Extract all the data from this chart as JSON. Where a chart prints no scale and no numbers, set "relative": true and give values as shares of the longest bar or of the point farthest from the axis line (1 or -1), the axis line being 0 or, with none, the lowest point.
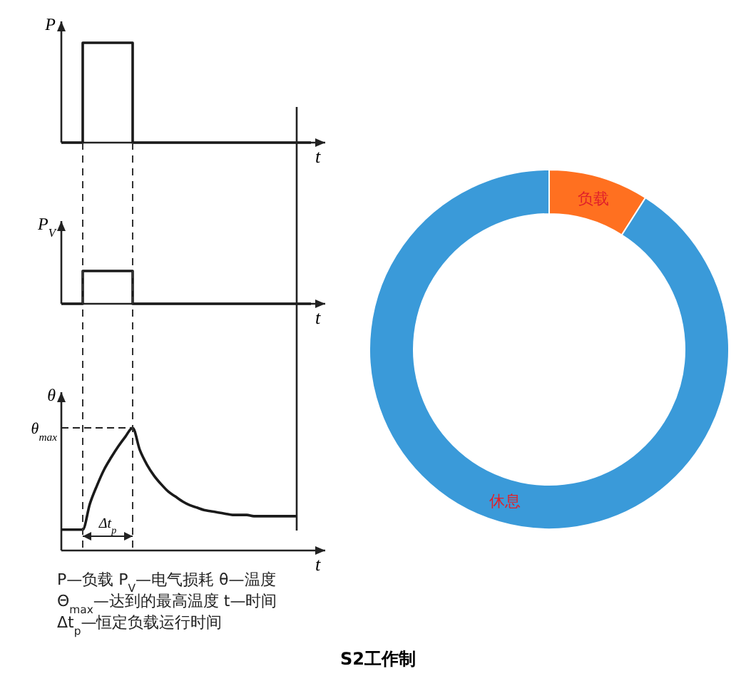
{
  "chart_data": [
    {
      "type": "step",
      "ylabel": "P",
      "xlabel": "t",
      "relative": true,
      "categories": [
        null,
        null,
        null,
        null,
        null,
        null,
        null,
        null,
        null,
        null,
        null,
        null,
        null,
        null,
        null,
        null,
        null,
        null,
        null,
        null,
        null,
        null,
        null,
        null,
        null,
        null,
        null,
        null,
        null,
        null,
        null,
        null,
        null,
        null,
        null,
        null
      ],
      "series": [
        {
          "color": "#1a1a1a",
          "values": [
            0,
            0,
            0,
            1,
            1,
            1,
            1,
            1,
            1,
            1,
            0,
            0,
            0,
            0,
            0,
            0,
            0,
            0,
            0,
            0,
            0,
            0,
            0,
            0,
            0,
            0,
            0,
            0,
            0,
            0,
            0,
            0,
            0,
            0,
            0,
            0
          ]
        }
      ]
    },
    {
      "type": "step",
      "ylabel": "P$_{V}$",
      "xlabel": "t",
      "relative": true,
      "categories": [
        null,
        null,
        null,
        null,
        null,
        null,
        null,
        null,
        null,
        null,
        null,
        null,
        null,
        null,
        null,
        null,
        null,
        null,
        null,
        null,
        null,
        null,
        null,
        null,
        null,
        null,
        null,
        null,
        null,
        null,
        null,
        null,
        null,
        null,
        null,
        null
      ],
      "series": [
        {
          "color": "#1a1a1a",
          "values": [
            0,
            0,
            0,
            1,
            1,
            1,
            1,
            1,
            1,
            1,
            0,
            0,
            0,
            0,
            0,
            0,
            0,
            0,
            0,
            0,
            0,
            0,
            0,
            0,
            0,
            0,
            0,
            0,
            0,
            0,
            0,
            0,
            0,
            0,
            0,
            0
          ]
        }
      ]
    },
    {
      "type": "line",
      "ylabel": "θ",
      "xlabel": "t",
      "relative": true,
      "categories": [
        null,
        null,
        null,
        null,
        null,
        null,
        null,
        null,
        null,
        null,
        null,
        null,
        null,
        null,
        null,
        null,
        null,
        null,
        null,
        null,
        null,
        null,
        null,
        null,
        null,
        null,
        null,
        null,
        null,
        null,
        null,
        null,
        null,
        null,
        null,
        null
      ],
      "series": [
        {
          "color": "#1a1a1a",
          "values": [
            0.17,
            0.17,
            0.17,
            0.17,
            0.38,
            0.53,
            0.66,
            0.76,
            0.85,
            0.93,
            1,
            0.82,
            0.7,
            0.61,
            0.54,
            0.48,
            0.44,
            0.4,
            0.37,
            0.35,
            0.33,
            0.32,
            0.31,
            0.3,
            0.29,
            0.29,
            0.29,
            0.28,
            0.28,
            0.28,
            0.28,
            0.28,
            0.28,
            0.28,
            null,
            null
          ]
        }
      ],
      "ref_lines": [
        {
          "axis": "y",
          "value": 1,
          "label": "θ$_{max}$",
          "line_style": "dashed"
        }
      ],
      "annotations": [
        "Δt$_{p}$",
        "P—负载  P$_{V}$—电气损耗  θ—温度",
        "Θ$_{max}$—达到的最高温度   t—时间",
        "Δt$_{p}$—恒定负载运行时间"
      ]
    },
    {
      "type": "donut",
      "title": "S2工作制",
      "categories": [
        "负载",
        "休息"
      ],
      "values": [
        9,
        91
      ],
      "colors": [
        "#ff7020",
        "#3a9ad9"
      ]
    }
  ]
}
